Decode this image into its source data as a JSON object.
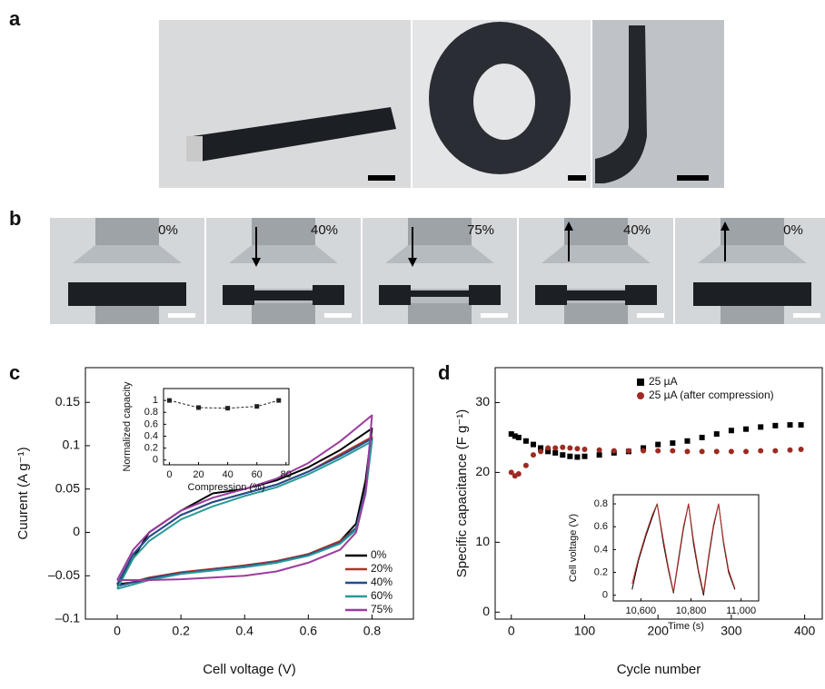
{
  "panel_labels": [
    "a",
    "b",
    "c",
    "d"
  ],
  "compression_photos": {
    "labels": [
      "0%",
      "40%",
      "75%",
      "40%",
      "0%"
    ]
  },
  "chart_data": [
    {
      "type": "line",
      "xlabel": "Cell voltage (V)",
      "ylabel": "Cuurent (A g⁻¹)",
      "x": [
        0,
        0.05,
        0.1,
        0.2,
        0.3,
        0.4,
        0.5,
        0.6,
        0.7,
        0.8,
        0.78,
        0.75,
        0.7,
        0.6,
        0.5,
        0.4,
        0.3,
        0.2,
        0.1,
        0
      ],
      "series": [
        {
          "name": "0%",
          "color": "#000000",
          "values": [
            -0.06,
            -0.03,
            0.0,
            0.025,
            0.045,
            0.05,
            0.06,
            0.075,
            0.095,
            0.12,
            0.06,
            0.01,
            -0.01,
            -0.025,
            -0.035,
            -0.04,
            -0.043,
            -0.047,
            -0.055,
            -0.06
          ]
        },
        {
          "name": "20%",
          "color": "#b5302a",
          "values": [
            -0.06,
            -0.025,
            -0.005,
            0.02,
            0.035,
            0.045,
            0.055,
            0.07,
            0.09,
            0.11,
            0.05,
            0.005,
            -0.01,
            -0.025,
            -0.033,
            -0.038,
            -0.042,
            -0.046,
            -0.052,
            -0.062
          ]
        },
        {
          "name": "40%",
          "color": "#1f4e8c",
          "values": [
            -0.06,
            -0.025,
            -0.005,
            0.02,
            0.035,
            0.045,
            0.055,
            0.07,
            0.088,
            0.108,
            0.05,
            0.005,
            -0.012,
            -0.026,
            -0.034,
            -0.039,
            -0.043,
            -0.047,
            -0.053,
            -0.062
          ]
        },
        {
          "name": "60%",
          "color": "#2a9a96",
          "values": [
            -0.065,
            -0.03,
            -0.01,
            0.015,
            0.03,
            0.042,
            0.052,
            0.067,
            0.085,
            0.105,
            0.045,
            0.003,
            -0.013,
            -0.027,
            -0.035,
            -0.04,
            -0.044,
            -0.048,
            -0.055,
            -0.065
          ]
        },
        {
          "name": "75%",
          "color": "#9b3c9e",
          "values": [
            -0.055,
            -0.02,
            0.0,
            0.025,
            0.04,
            0.05,
            0.062,
            0.08,
            0.105,
            0.135,
            0.045,
            0.0,
            -0.02,
            -0.035,
            -0.045,
            -0.05,
            -0.052,
            -0.054,
            -0.055,
            -0.055
          ]
        }
      ],
      "xlim": [
        -0.1,
        0.93
      ],
      "xticks": [
        0,
        0.2,
        0.4,
        0.6,
        0.8
      ],
      "ylim": [
        -0.1,
        0.19
      ],
      "yticks": [
        {
          "value": -0.1,
          "label": "–0.1"
        },
        {
          "value": -0.05,
          "label": "–0.05"
        },
        0,
        0.05,
        0.1,
        0.15
      ],
      "grid": false,
      "legend": "lower right"
    },
    {
      "type": "line",
      "xlabel": "Compression (%)",
      "ylabel": "Normalized capacity",
      "x": [
        0,
        20,
        40,
        60,
        75
      ],
      "series": [
        {
          "color": "#222222",
          "marker": "square",
          "linestyle": "dashed",
          "values": [
            1.0,
            0.88,
            0.87,
            0.9,
            1.0
          ]
        }
      ],
      "xlim": [
        -4,
        82
      ],
      "xticks": [
        0,
        20,
        40,
        60,
        80
      ],
      "ylim": [
        -0.08,
        1.2
      ],
      "yticks": [
        0,
        0.2,
        0.4,
        0.6,
        0.8,
        1
      ],
      "grid": false
    },
    {
      "type": "scatter",
      "xlabel": "Cycle number",
      "ylabel": "Specific capacitance (F g⁻¹)",
      "x": [
        0,
        5,
        10,
        20,
        30,
        40,
        50,
        60,
        70,
        80,
        90,
        100,
        120,
        140,
        160,
        180,
        200,
        220,
        240,
        260,
        280,
        300,
        320,
        340,
        360,
        380,
        395
      ],
      "series": [
        {
          "name": "25 µA",
          "color": "#000000",
          "marker": "square",
          "values": [
            25.5,
            25.2,
            25,
            24.5,
            24,
            23.5,
            23,
            22.8,
            22.5,
            22.3,
            22.2,
            22.3,
            22.5,
            22.8,
            23,
            23.5,
            24,
            24.2,
            24.5,
            25,
            25.5,
            26,
            26.2,
            26.5,
            26.7,
            26.8,
            26.8
          ]
        },
        {
          "name": "25 µA (after compression)",
          "color": "#9e2a22",
          "marker": "circle",
          "values": [
            20,
            19.5,
            19.8,
            21,
            22.5,
            23,
            23.5,
            23.5,
            23.6,
            23.5,
            23.4,
            23.3,
            23.2,
            23.1,
            23.1,
            23.1,
            23.1,
            23.1,
            23,
            23,
            23,
            23,
            23,
            23.1,
            23.1,
            23.2,
            23.3
          ]
        }
      ],
      "xlim": [
        -22,
        424
      ],
      "xticks": [
        0,
        100,
        200,
        300,
        400
      ],
      "ylim": [
        -1,
        35
      ],
      "yticks": [
        0,
        10,
        20,
        30
      ],
      "grid": false,
      "legend": "upper right"
    },
    {
      "type": "line",
      "xlabel": "Time (s)",
      "ylabel": "Cell voltage (V)",
      "x": [
        10565,
        10590,
        10620,
        10645,
        10665,
        10690,
        10710,
        10730,
        10750,
        10770,
        10790,
        10810,
        10830,
        10850,
        10870,
        10890,
        10910,
        10930,
        10950,
        10975
      ],
      "series": [
        {
          "color": "#000000",
          "values": [
            0.05,
            0.3,
            0.52,
            0.68,
            0.8,
            0.45,
            0.22,
            0.02,
            0.3,
            0.58,
            0.8,
            0.45,
            0.2,
            0.0,
            0.32,
            0.6,
            0.8,
            0.45,
            0.2,
            0.05
          ]
        },
        {
          "color": "#b5302a",
          "values": [
            0.1,
            0.32,
            0.54,
            0.7,
            0.8,
            0.48,
            0.24,
            0.03,
            0.32,
            0.6,
            0.8,
            0.48,
            0.22,
            0.02,
            0.34,
            0.62,
            0.8,
            0.47,
            0.22,
            0.06
          ]
        }
      ],
      "xlim": [
        10490,
        11070
      ],
      "xticks": [
        {
          "value": 10600,
          "label": "10,600"
        },
        {
          "value": 10800,
          "label": "10,800"
        },
        {
          "value": 11000,
          "label": "11,000"
        }
      ],
      "ylim": [
        -0.05,
        0.88
      ],
      "yticks": [
        0,
        0.2,
        0.4,
        0.6,
        0.8
      ],
      "grid": false
    }
  ]
}
